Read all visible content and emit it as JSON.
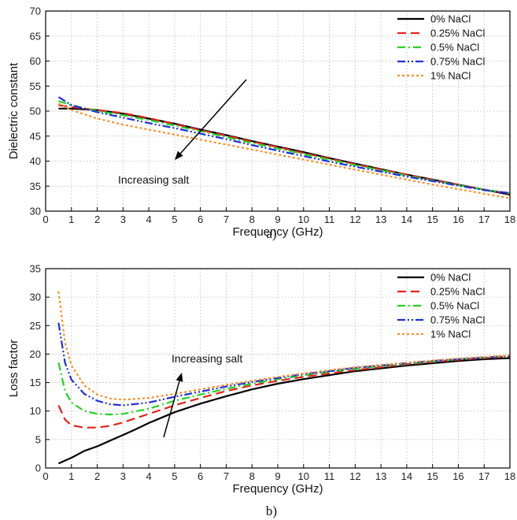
{
  "colors": {
    "s0": "#000000",
    "s025": "#e8221b",
    "s05": "#22d322",
    "s075": "#1f2ee0",
    "s1": "#f7912a"
  },
  "chart_data": [
    {
      "type": "line",
      "caption": "a)",
      "xlabel": "Frequency (GHz)",
      "ylabel": "Dielectric constant",
      "xlim": [
        0,
        18
      ],
      "ylim": [
        30,
        70
      ],
      "xticks": [
        0,
        1,
        2,
        3,
        4,
        5,
        6,
        7,
        8,
        9,
        10,
        11,
        12,
        13,
        14,
        15,
        16,
        17,
        18
      ],
      "yticks": [
        30,
        35,
        40,
        45,
        50,
        55,
        60,
        65,
        70
      ],
      "grid": true,
      "legend_position": "top-right",
      "annotation": "Increasing salt",
      "series": [
        {
          "name": "0% NaCl",
          "color_key": "s0",
          "style": "solid",
          "x": [
            0.5,
            1,
            2,
            3,
            4,
            5,
            6,
            7,
            8,
            9,
            10,
            11,
            12,
            13,
            14,
            15,
            16,
            17,
            18
          ],
          "y": [
            50.5,
            50.5,
            50.2,
            49.5,
            48.5,
            47.5,
            46.3,
            45.2,
            44.0,
            42.9,
            41.8,
            40.6,
            39.5,
            38.4,
            37.3,
            36.3,
            35.3,
            34.3,
            33.3
          ]
        },
        {
          "name": "0.25% NaCl",
          "color_key": "s025",
          "style": "dash",
          "x": [
            0.5,
            1,
            2,
            3,
            4,
            5,
            6,
            7,
            8,
            9,
            10,
            11,
            12,
            13,
            14,
            15,
            16,
            17,
            18
          ],
          "y": [
            51.2,
            50.8,
            50.2,
            49.6,
            48.6,
            47.4,
            46.2,
            45.1,
            43.9,
            42.8,
            41.6,
            40.5,
            39.4,
            38.3,
            37.3,
            36.2,
            35.3,
            34.3,
            33.5
          ]
        },
        {
          "name": "0.5% NaCl",
          "color_key": "s05",
          "style": "dashdot",
          "x": [
            0.5,
            1,
            2,
            3,
            4,
            5,
            6,
            7,
            8,
            9,
            10,
            11,
            12,
            13,
            14,
            15,
            16,
            17,
            18
          ],
          "y": [
            52.0,
            51.2,
            50.0,
            49.2,
            48.2,
            47.1,
            46.0,
            44.8,
            43.6,
            42.5,
            41.4,
            40.3,
            39.2,
            38.2,
            37.1,
            36.1,
            35.2,
            34.3,
            33.6
          ]
        },
        {
          "name": "0.75% NaCl",
          "color_key": "s075",
          "style": "dashdotdot",
          "x": [
            0.5,
            1,
            2,
            3,
            4,
            5,
            6,
            7,
            8,
            9,
            10,
            11,
            12,
            13,
            14,
            15,
            16,
            17,
            18
          ],
          "y": [
            52.8,
            51.2,
            49.8,
            48.7,
            47.6,
            46.6,
            45.5,
            44.4,
            43.2,
            42.1,
            41.0,
            39.9,
            38.9,
            37.9,
            36.9,
            36.0,
            35.1,
            34.2,
            33.6
          ]
        },
        {
          "name": "1% NaCl",
          "color_key": "s1",
          "style": "dot",
          "x": [
            0.5,
            1,
            2,
            3,
            4,
            5,
            6,
            7,
            8,
            9,
            10,
            11,
            12,
            13,
            14,
            15,
            16,
            17,
            18
          ],
          "y": [
            51.5,
            50.2,
            48.5,
            47.3,
            46.3,
            45.3,
            44.3,
            43.3,
            42.3,
            41.3,
            40.3,
            39.3,
            38.3,
            37.3,
            36.3,
            35.3,
            34.4,
            33.5,
            32.6
          ]
        }
      ]
    },
    {
      "type": "line",
      "caption": "b)",
      "xlabel": "Frequency (GHz)",
      "ylabel": "Loss factor",
      "xlim": [
        0,
        18
      ],
      "ylim": [
        0,
        35
      ],
      "xticks": [
        0,
        1,
        2,
        3,
        4,
        5,
        6,
        7,
        8,
        9,
        10,
        11,
        12,
        13,
        14,
        15,
        16,
        17,
        18
      ],
      "yticks": [
        0,
        5,
        10,
        15,
        20,
        25,
        30,
        35
      ],
      "grid": true,
      "legend_position": "top-right",
      "annotation": "Increasing salt",
      "series": [
        {
          "name": "0% NaCl",
          "color_key": "s0",
          "style": "solid",
          "x": [
            0.5,
            1,
            1.5,
            2,
            2.5,
            3,
            3.5,
            4,
            5,
            6,
            7,
            8,
            9,
            10,
            11,
            12,
            13,
            14,
            15,
            16,
            17,
            18
          ],
          "y": [
            0.8,
            1.8,
            3.0,
            3.8,
            4.8,
            5.8,
            6.8,
            7.9,
            9.8,
            11.3,
            12.6,
            13.8,
            14.8,
            15.6,
            16.3,
            17.0,
            17.5,
            18.0,
            18.4,
            18.8,
            19.1,
            19.3
          ]
        },
        {
          "name": "0.25% NaCl",
          "color_key": "s025",
          "style": "dash",
          "x": [
            0.5,
            0.75,
            1,
            1.5,
            2,
            2.5,
            3,
            4,
            5,
            6,
            7,
            8,
            9,
            10,
            11,
            12,
            13,
            14,
            15,
            16,
            17,
            18
          ],
          "y": [
            11.0,
            8.5,
            7.5,
            7.1,
            7.1,
            7.4,
            8.0,
            9.5,
            11.0,
            12.3,
            13.5,
            14.5,
            15.3,
            16.0,
            16.6,
            17.2,
            17.7,
            18.2,
            18.6,
            19.0,
            19.3,
            19.6
          ]
        },
        {
          "name": "0.5% NaCl",
          "color_key": "s05",
          "style": "dashdot",
          "x": [
            0.5,
            0.75,
            1,
            1.5,
            2,
            2.5,
            3,
            4,
            5,
            6,
            7,
            8,
            9,
            10,
            11,
            12,
            13,
            14,
            15,
            16,
            17,
            18
          ],
          "y": [
            18.5,
            13.5,
            11.5,
            10.0,
            9.5,
            9.4,
            9.5,
            10.4,
            11.8,
            12.9,
            13.9,
            14.8,
            15.6,
            16.3,
            16.9,
            17.4,
            17.9,
            18.3,
            18.7,
            19.1,
            19.4,
            19.7
          ]
        },
        {
          "name": "0.75% NaCl",
          "color_key": "s075",
          "style": "dashdotdot",
          "x": [
            0.5,
            0.75,
            1,
            1.5,
            2,
            2.5,
            3,
            4,
            5,
            6,
            7,
            8,
            9,
            10,
            11,
            12,
            13,
            14,
            15,
            16,
            17,
            18
          ],
          "y": [
            25.5,
            18.5,
            15.5,
            13.0,
            11.8,
            11.2,
            11.0,
            11.5,
            12.5,
            13.4,
            14.3,
            15.1,
            15.8,
            16.5,
            17.0,
            17.6,
            18.0,
            18.4,
            18.8,
            19.1,
            19.4,
            19.7
          ]
        },
        {
          "name": "1% NaCl",
          "color_key": "s1",
          "style": "dot",
          "x": [
            0.5,
            0.75,
            1,
            1.5,
            2,
            2.5,
            3,
            4,
            5,
            6,
            7,
            8,
            9,
            10,
            11,
            12,
            13,
            14,
            15,
            16,
            17,
            18
          ],
          "y": [
            31.0,
            22.0,
            18.0,
            14.5,
            12.9,
            12.2,
            12.0,
            12.3,
            13.0,
            13.8,
            14.6,
            15.3,
            16.0,
            16.6,
            17.2,
            17.7,
            18.1,
            18.5,
            18.9,
            19.2,
            19.5,
            19.8
          ]
        }
      ]
    }
  ]
}
